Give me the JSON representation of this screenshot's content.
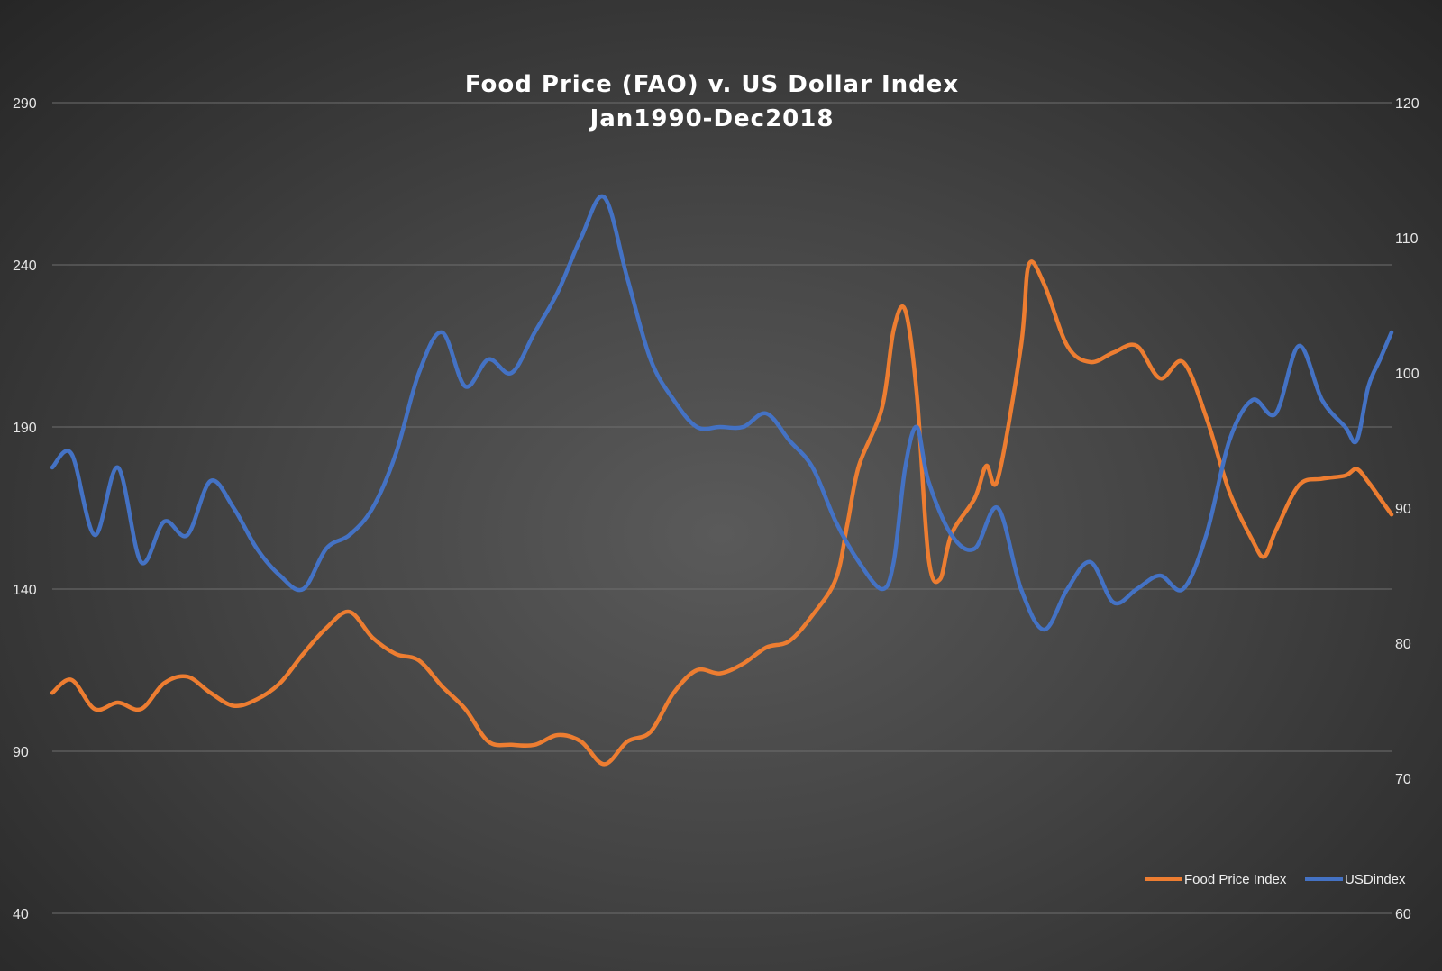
{
  "chart_data": {
    "type": "line",
    "title": "Food Price  (FAO) v. US Dollar Index",
    "subtitle": "Jan1990-Dec2018",
    "xlabel": "",
    "ylabel_left": "",
    "ylabel_right": "",
    "x_range": [
      "1990-01",
      "2018-12"
    ],
    "y_left": {
      "min": 40,
      "max": 290,
      "ticks": [
        40,
        90,
        140,
        190,
        240,
        290
      ]
    },
    "y_right": {
      "min": 60,
      "max": 120,
      "ticks": [
        60,
        70,
        80,
        90,
        100,
        110,
        120
      ]
    },
    "grid": true,
    "legend_position": "bottom-right",
    "colors": {
      "food": "#ED7D31",
      "usd": "#4472C4"
    },
    "series": [
      {
        "name": "Food Price Index",
        "axis": "left",
        "color": "#ED7D31",
        "points": [
          [
            "1990-01",
            108
          ],
          [
            "1990-06",
            112
          ],
          [
            "1990-12",
            103
          ],
          [
            "1991-06",
            105
          ],
          [
            "1991-12",
            103
          ],
          [
            "1992-06",
            111
          ],
          [
            "1992-12",
            113
          ],
          [
            "1993-06",
            108
          ],
          [
            "1993-12",
            104
          ],
          [
            "1994-06",
            106
          ],
          [
            "1994-12",
            111
          ],
          [
            "1995-06",
            120
          ],
          [
            "1995-12",
            128
          ],
          [
            "1996-06",
            133
          ],
          [
            "1996-12",
            125
          ],
          [
            "1997-06",
            120
          ],
          [
            "1997-12",
            118
          ],
          [
            "1998-06",
            110
          ],
          [
            "1998-12",
            103
          ],
          [
            "1999-06",
            93
          ],
          [
            "1999-12",
            92
          ],
          [
            "2000-06",
            92
          ],
          [
            "2000-12",
            95
          ],
          [
            "2001-06",
            93
          ],
          [
            "2001-12",
            86
          ],
          [
            "2002-06",
            93
          ],
          [
            "2002-12",
            96
          ],
          [
            "2003-06",
            108
          ],
          [
            "2003-12",
            115
          ],
          [
            "2004-06",
            114
          ],
          [
            "2004-12",
            117
          ],
          [
            "2005-06",
            122
          ],
          [
            "2005-12",
            124
          ],
          [
            "2006-06",
            132
          ],
          [
            "2006-12",
            143
          ],
          [
            "2007-03",
            160
          ],
          [
            "2007-06",
            178
          ],
          [
            "2007-12",
            196
          ],
          [
            "2008-03",
            220
          ],
          [
            "2008-06",
            226
          ],
          [
            "2008-09",
            200
          ],
          [
            "2008-12",
            150
          ],
          [
            "2009-03",
            143
          ],
          [
            "2009-06",
            157
          ],
          [
            "2009-12",
            168
          ],
          [
            "2010-03",
            178
          ],
          [
            "2010-06",
            174
          ],
          [
            "2010-12",
            215
          ],
          [
            "2011-02",
            240
          ],
          [
            "2011-06",
            234
          ],
          [
            "2011-12",
            215
          ],
          [
            "2012-06",
            210
          ],
          [
            "2012-12",
            213
          ],
          [
            "2013-06",
            215
          ],
          [
            "2013-12",
            205
          ],
          [
            "2014-06",
            210
          ],
          [
            "2014-12",
            193
          ],
          [
            "2015-06",
            170
          ],
          [
            "2015-12",
            155
          ],
          [
            "2016-03",
            150
          ],
          [
            "2016-06",
            158
          ],
          [
            "2016-12",
            172
          ],
          [
            "2017-06",
            174
          ],
          [
            "2017-12",
            175
          ],
          [
            "2018-03",
            177
          ],
          [
            "2018-06",
            173
          ],
          [
            "2018-09",
            168
          ],
          [
            "2018-12",
            163
          ]
        ]
      },
      {
        "name": "USDindex",
        "axis": "right",
        "color": "#4472C4",
        "points": [
          [
            "1990-01",
            93
          ],
          [
            "1990-06",
            94
          ],
          [
            "1990-12",
            88
          ],
          [
            "1991-06",
            93
          ],
          [
            "1991-12",
            86
          ],
          [
            "1992-06",
            89
          ],
          [
            "1992-12",
            88
          ],
          [
            "1993-06",
            92
          ],
          [
            "1993-12",
            90
          ],
          [
            "1994-06",
            87
          ],
          [
            "1994-12",
            85
          ],
          [
            "1995-06",
            84
          ],
          [
            "1995-12",
            87
          ],
          [
            "1996-06",
            88
          ],
          [
            "1996-12",
            90
          ],
          [
            "1997-06",
            94
          ],
          [
            "1997-12",
            100
          ],
          [
            "1998-06",
            103
          ],
          [
            "1998-12",
            99
          ],
          [
            "1999-06",
            101
          ],
          [
            "1999-12",
            100
          ],
          [
            "2000-06",
            103
          ],
          [
            "2000-12",
            106
          ],
          [
            "2001-06",
            110
          ],
          [
            "2001-12",
            113
          ],
          [
            "2002-06",
            107
          ],
          [
            "2002-12",
            101
          ],
          [
            "2003-06",
            98
          ],
          [
            "2003-12",
            96
          ],
          [
            "2004-06",
            96
          ],
          [
            "2004-12",
            96
          ],
          [
            "2005-06",
            97
          ],
          [
            "2005-12",
            95
          ],
          [
            "2006-06",
            93
          ],
          [
            "2006-12",
            89
          ],
          [
            "2007-06",
            86
          ],
          [
            "2007-12",
            84
          ],
          [
            "2008-03",
            86
          ],
          [
            "2008-06",
            93
          ],
          [
            "2008-09",
            96
          ],
          [
            "2008-12",
            92
          ],
          [
            "2009-06",
            88
          ],
          [
            "2009-12",
            87
          ],
          [
            "2010-06",
            90
          ],
          [
            "2010-12",
            84
          ],
          [
            "2011-06",
            81
          ],
          [
            "2011-12",
            84
          ],
          [
            "2012-06",
            86
          ],
          [
            "2012-12",
            83
          ],
          [
            "2013-06",
            84
          ],
          [
            "2013-12",
            85
          ],
          [
            "2014-06",
            84
          ],
          [
            "2014-12",
            88
          ],
          [
            "2015-06",
            95
          ],
          [
            "2015-12",
            98
          ],
          [
            "2016-06",
            97
          ],
          [
            "2016-12",
            102
          ],
          [
            "2017-06",
            98
          ],
          [
            "2017-12",
            96
          ],
          [
            "2018-03",
            95
          ],
          [
            "2018-06",
            99
          ],
          [
            "2018-09",
            101
          ],
          [
            "2018-12",
            103
          ]
        ]
      }
    ]
  }
}
